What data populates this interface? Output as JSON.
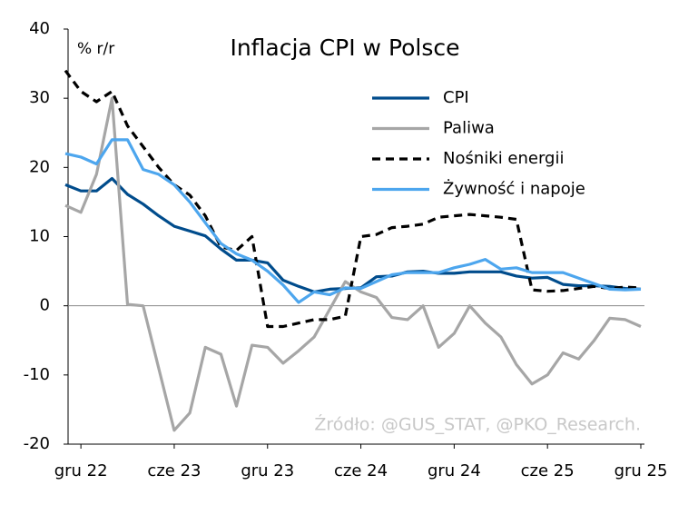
{
  "chart_data": {
    "type": "line",
    "title": "Inflacja CPI w Polsce",
    "y_label": "% r/r",
    "source": "Źródło: @GUS_STAT, @PKO_Research.",
    "categories": [
      null,
      "gru 22",
      null,
      null,
      null,
      null,
      null,
      "cze 23",
      null,
      null,
      null,
      null,
      null,
      "gru 23",
      null,
      null,
      null,
      null,
      null,
      "cze 24",
      null,
      null,
      null,
      null,
      null,
      "gru 24",
      null,
      null,
      null,
      null,
      null,
      "cze 25",
      null,
      null,
      null,
      null,
      null,
      "gru 25"
    ],
    "ylim": [
      -20,
      40
    ],
    "yticks": [
      -20,
      -10,
      0,
      10,
      20,
      30,
      40
    ],
    "legend": "top-right",
    "series": [
      {
        "name": "CPI",
        "color": "#004c8c",
        "dash": false,
        "values": [
          17.5,
          16.6,
          16.6,
          18.4,
          16.1,
          14.7,
          13.0,
          11.5,
          10.8,
          10.1,
          8.2,
          6.6,
          6.6,
          6.2,
          3.7,
          2.8,
          2.0,
          2.4,
          2.5,
          2.6,
          4.2,
          4.3,
          4.9,
          5.0,
          4.7,
          4.7,
          4.9,
          4.9,
          4.9,
          4.3,
          4.0,
          4.1,
          3.1,
          2.9,
          2.9,
          2.8,
          2.5,
          2.4
        ]
      },
      {
        "name": "Paliwa",
        "color": "#a6a6a6",
        "dash": false,
        "values": [
          14.5,
          13.5,
          19,
          30,
          0.2,
          0,
          -9,
          -18,
          -15.5,
          -6,
          -7,
          -14.5,
          -5.7,
          -6,
          -8.3,
          -6.5,
          -4.5,
          -0.5,
          3.5,
          2,
          1.2,
          -1.7,
          -2,
          0,
          -6,
          -4,
          0,
          -2.5,
          -4.5,
          -8.5,
          -11.3,
          -10,
          -6.8,
          -7.7,
          -5,
          -1.8,
          -2,
          -3
        ]
      },
      {
        "name": "Nośniki energii",
        "color": "#000000",
        "dash": true,
        "values": [
          34,
          31,
          29.5,
          31,
          26,
          23,
          20,
          17.5,
          16,
          13,
          8.5,
          8,
          10,
          -3,
          -3,
          -2.5,
          -2,
          -2,
          -1.5,
          10,
          10.3,
          11.3,
          11.5,
          11.8,
          12.8,
          13,
          13.2,
          13,
          12.8,
          12.5,
          2.3,
          2.1,
          2.2,
          2.5,
          2.8,
          2.5,
          2.7,
          2.6
        ]
      },
      {
        "name": "Żywność i napoje",
        "color": "#4da6ee",
        "dash": false,
        "values": [
          22,
          21.5,
          20.5,
          24,
          24,
          19.7,
          19,
          17.5,
          15,
          12,
          9,
          7.5,
          6.6,
          5,
          3,
          0.5,
          2,
          1.6,
          2.6,
          2.5,
          3.5,
          4.5,
          4.8,
          4.8,
          4.8,
          5.5,
          6,
          6.7,
          5.3,
          5.5,
          4.8,
          4.8,
          4.8,
          4,
          3.2,
          2.4,
          2.3,
          2.4
        ]
      }
    ]
  }
}
